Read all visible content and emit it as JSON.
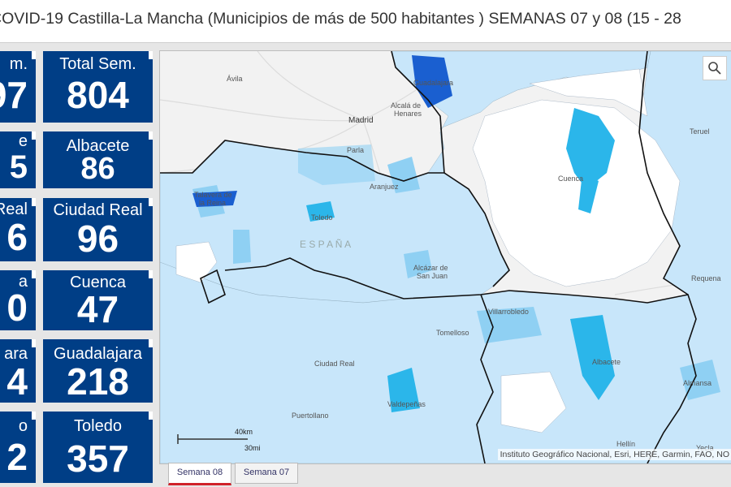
{
  "title": "COVID-19 Castilla-La Mancha (Municipios de más de 500 habitantes ) SEMANAS 07 y 08 (15 - 28",
  "left_tiles": [
    {
      "label": "m.",
      "value": "97"
    },
    {
      "label": "e",
      "value": "5"
    },
    {
      "label": "Real",
      "value": "6"
    },
    {
      "label": "a",
      "value": "0"
    },
    {
      "label": "ara",
      "value": "4"
    },
    {
      "label": "o",
      "value": "2"
    }
  ],
  "tiles": [
    {
      "label": "Total Sem.",
      "value": "804"
    },
    {
      "label": "Albacete",
      "value": "86"
    },
    {
      "label": "Ciudad Real",
      "value": "96"
    },
    {
      "label": "Cuenca",
      "value": "47"
    },
    {
      "label": "Guadalajara",
      "value": "218"
    },
    {
      "label": "Toledo",
      "value": "357"
    }
  ],
  "map": {
    "attribution": "Instituto Geográfico Nacional, Esri, HERE, Garmin, FAO, NO",
    "scale_km": "40km",
    "scale_mi": "30mi",
    "labels": {
      "avila": "Ávila",
      "madrid": "Madrid",
      "parla": "Parla",
      "alcala": "Alcalá de",
      "henares": "Henares",
      "guadalajara": "Guadalajara",
      "aranjuez": "Aranjuez",
      "talavera1": "Talavera de",
      "talavera2": "la Reina",
      "toledo": "Toledo",
      "espana": "E S P A Ñ A",
      "cuenca": "Cuenca",
      "teruel": "Teruel",
      "requena": "Requena",
      "alcazar1": "Alcázar de",
      "alcazar2": "San Juan",
      "villarrobledo": "Villarrobledo",
      "tomelloso": "Tomelloso",
      "ciudadreal": "Ciudad Real",
      "albacete": "Albacete",
      "almansa": "Almansa",
      "valdepenas": "Valdepeñas",
      "puertollano": "Puertollano",
      "hellin": "Hellín",
      "yecla": "Yecla"
    },
    "colors": {
      "light": "#c8e6fa",
      "mid": "#8fd0f3",
      "strong": "#2bb6ea",
      "dark": "#1a5fd0",
      "border": "#111111"
    }
  },
  "tabs": [
    {
      "label": "Semana 08",
      "active": true
    },
    {
      "label": "Semana 07",
      "active": false
    }
  ]
}
